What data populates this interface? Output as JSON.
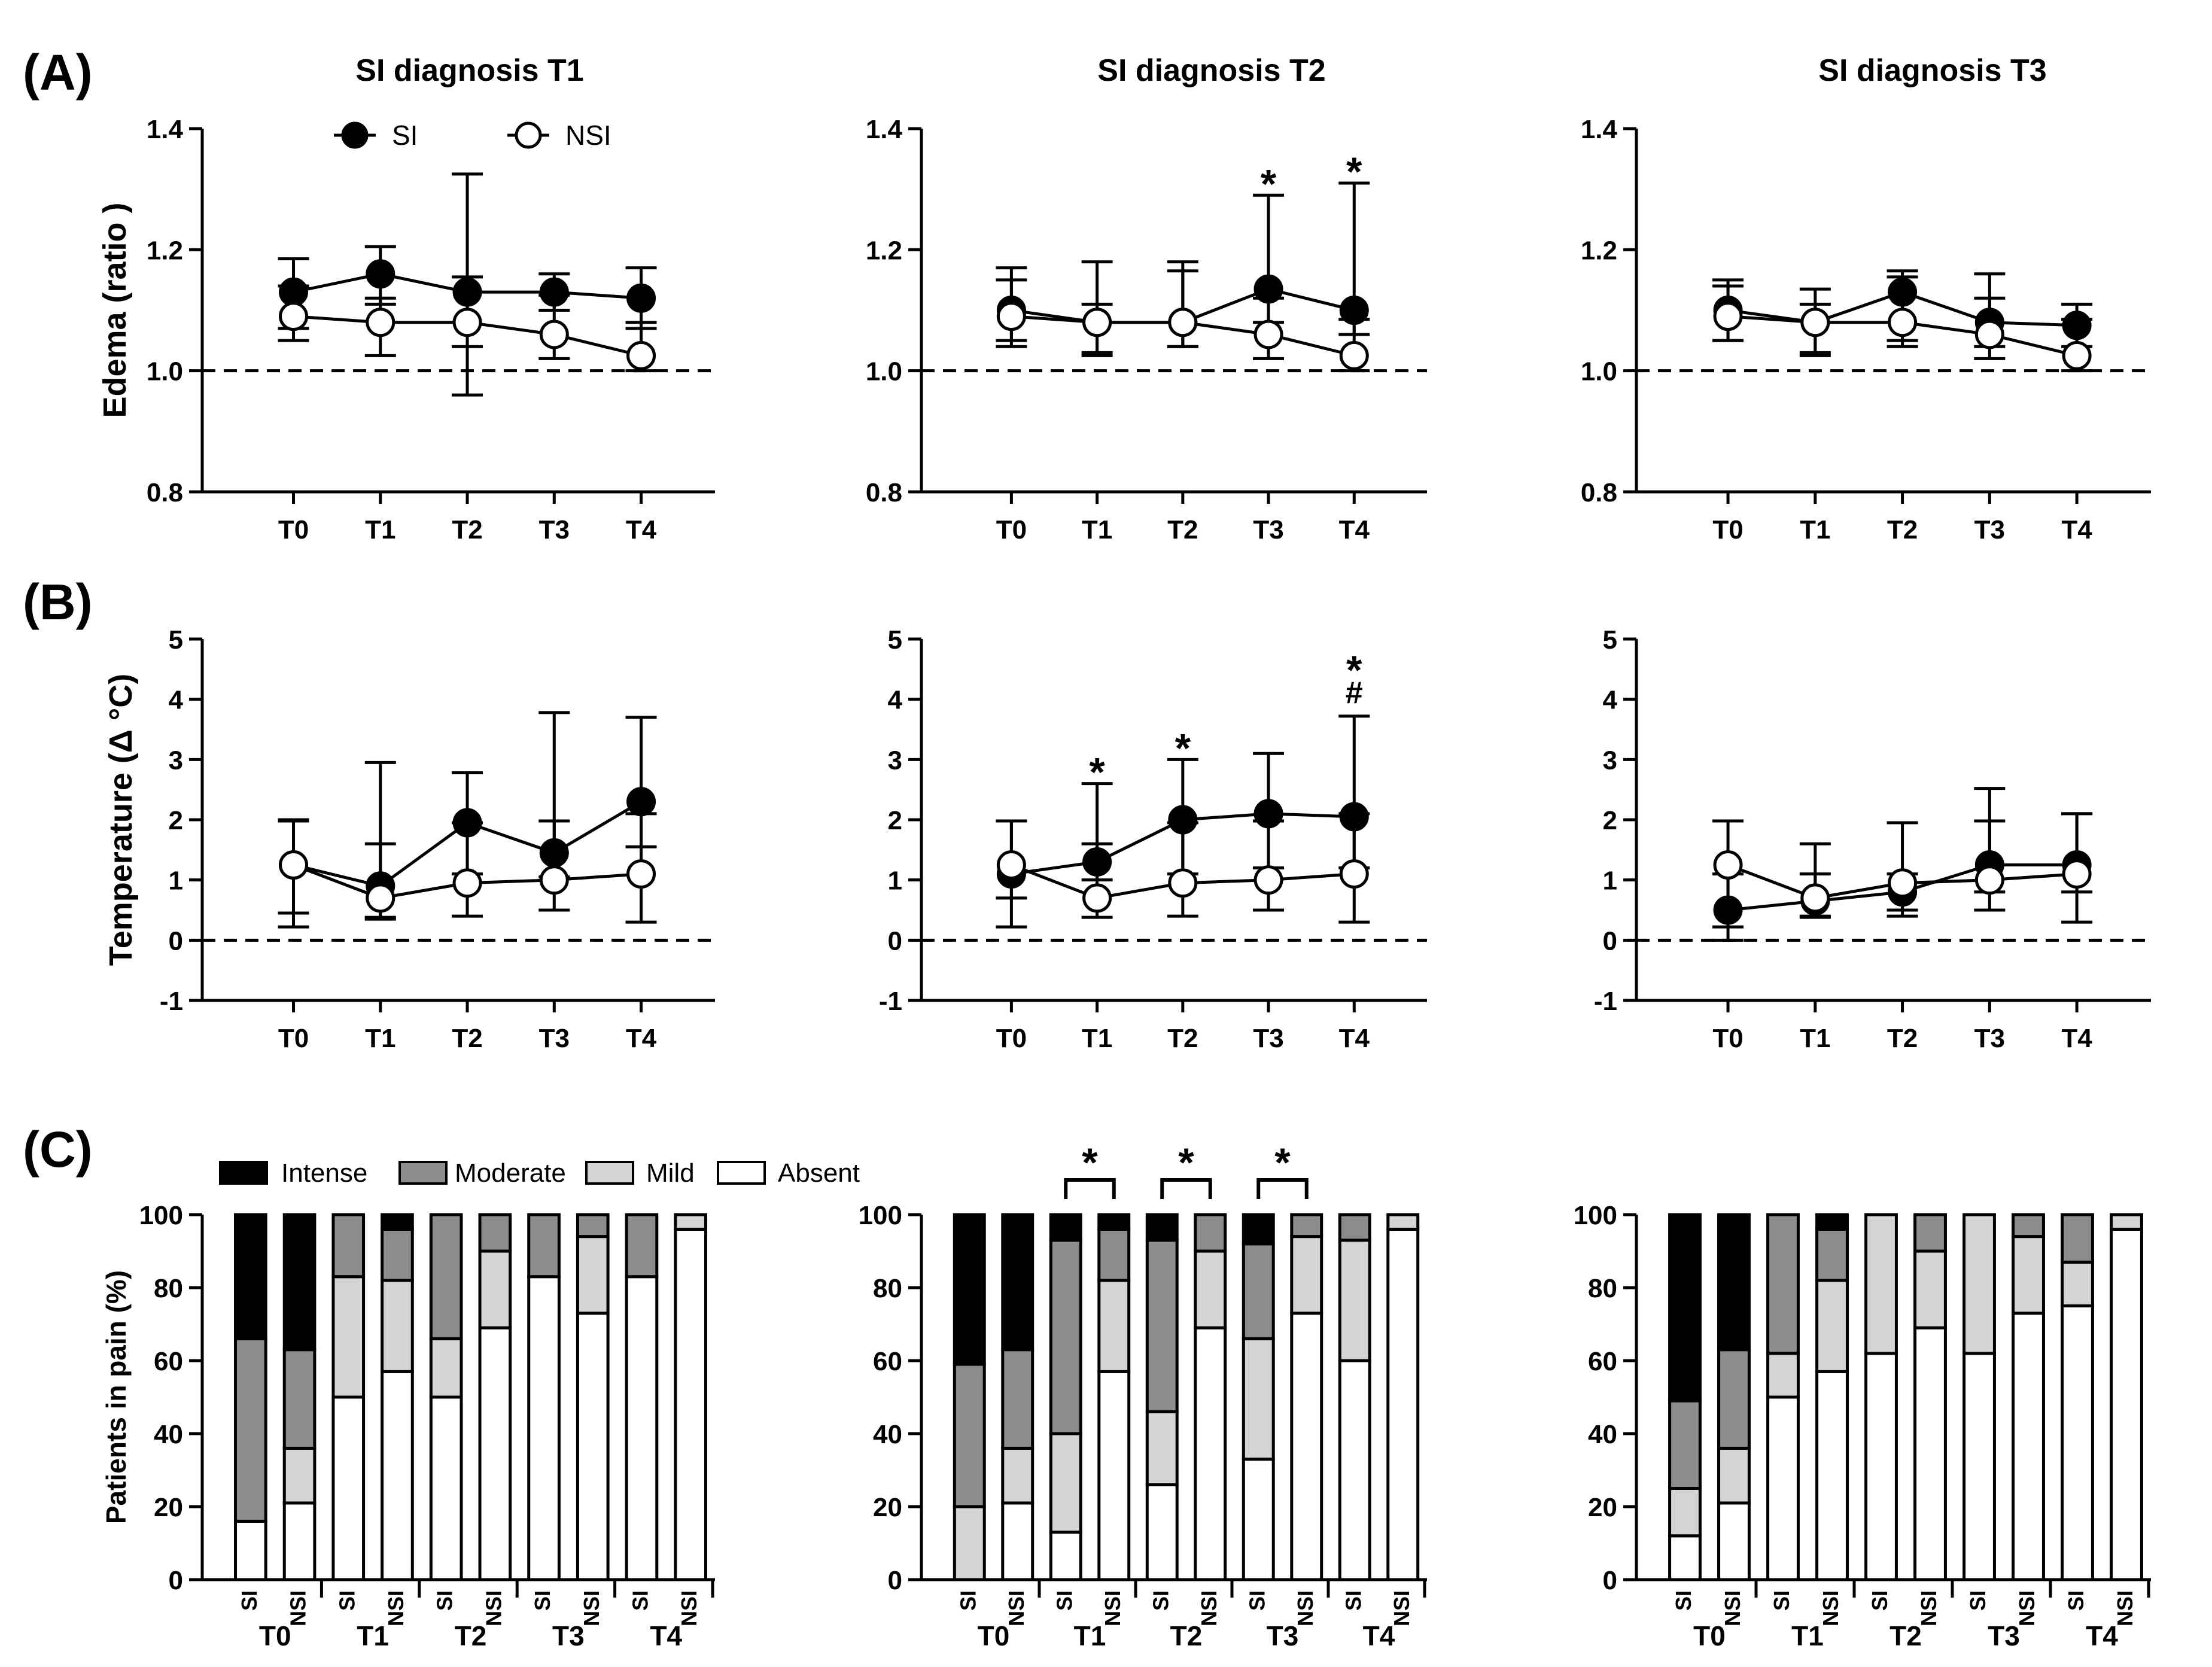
{
  "panels": {
    "A": "(A)",
    "B": "(B)",
    "C": "(C)"
  },
  "column_titles": [
    "SI diagnosis T1",
    "SI diagnosis T2",
    "SI diagnosis T3"
  ],
  "line_legend": {
    "si": "SI",
    "nsi": "NSI"
  },
  "bar_legend": [
    "Intense",
    "Moderate",
    "Mild",
    "Absent"
  ],
  "colors": {
    "intense": "#000000",
    "moderate": "#8c8c8c",
    "mild": "#d4d4d4",
    "absent": "#ffffff",
    "axis": "#000000"
  },
  "chart_data": {
    "edema": {
      "type": "line",
      "ylabel": "Edema (ratio )",
      "ylim": [
        0.8,
        1.4
      ],
      "yticks": [
        0.8,
        1.0,
        1.2,
        1.4
      ],
      "ytick_labels": [
        "0.8",
        "1.0",
        "1.2",
        "1.4"
      ],
      "reference": 1.0,
      "categories": [
        "T0",
        "T1",
        "T2",
        "T3",
        "T4"
      ],
      "charts": [
        {
          "si": [
            1.13,
            1.16,
            1.13,
            1.13,
            1.12
          ],
          "si_err_up": [
            1.185,
            1.205,
            1.325,
            1.16,
            1.17
          ],
          "si_err_lo": [
            1.07,
            1.11,
            0.96,
            1.1,
            1.07
          ],
          "nsi": [
            1.09,
            1.08,
            1.08,
            1.06,
            1.025
          ],
          "nsi_err_up": [
            1.14,
            1.12,
            1.155,
            1.125,
            1.08
          ],
          "nsi_err_lo": [
            1.05,
            1.025,
            1.04,
            1.02,
            1.0
          ],
          "annotations": [
            "",
            "",
            "",
            "",
            ""
          ]
        },
        {
          "si": [
            1.1,
            1.08,
            1.08,
            1.135,
            1.1
          ],
          "si_err_up": [
            1.17,
            1.18,
            1.18,
            1.29,
            1.31
          ],
          "si_err_lo": [
            1.05,
            1.03,
            1.04,
            1.08,
            1.06
          ],
          "nsi": [
            1.09,
            1.08,
            1.08,
            1.06,
            1.025
          ],
          "nsi_err_up": [
            1.15,
            1.11,
            1.165,
            1.12,
            1.085
          ],
          "nsi_err_lo": [
            1.04,
            1.025,
            1.04,
            1.02,
            1.0
          ],
          "annotations": [
            "",
            "",
            "",
            "*",
            "*"
          ]
        },
        {
          "si": [
            1.1,
            1.08,
            1.13,
            1.08,
            1.075
          ],
          "si_err_up": [
            1.15,
            1.135,
            1.165,
            1.16,
            1.11
          ],
          "si_err_lo": [
            1.05,
            1.03,
            1.05,
            1.04,
            1.04
          ],
          "nsi": [
            1.09,
            1.08,
            1.08,
            1.06,
            1.025
          ],
          "nsi_err_up": [
            1.14,
            1.11,
            1.155,
            1.12,
            1.085
          ],
          "nsi_err_lo": [
            1.05,
            1.025,
            1.04,
            1.02,
            1.0
          ],
          "annotations": [
            "",
            "",
            "",
            "",
            ""
          ]
        }
      ]
    },
    "temperature": {
      "type": "line",
      "ylabel": "Temperature (Δ °C)",
      "ylim": [
        -1,
        5
      ],
      "yticks": [
        -1,
        0,
        1,
        2,
        3,
        4,
        5
      ],
      "ytick_labels": [
        "-1",
        "0",
        "1",
        "2",
        "3",
        "4",
        "5"
      ],
      "reference": 0,
      "categories": [
        "T0",
        "T1",
        "T2",
        "T3",
        "T4"
      ],
      "charts": [
        {
          "si": [
            1.25,
            0.9,
            1.95,
            1.45,
            2.3
          ],
          "si_err_up": [
            2.0,
            2.95,
            2.78,
            3.78,
            3.7
          ],
          "si_err_lo": [
            0.45,
            0.35,
            1.1,
            1.05,
            1.55
          ],
          "nsi": [
            1.25,
            0.7,
            0.95,
            1.0,
            1.1
          ],
          "nsi_err_up": [
            1.98,
            1.6,
            1.95,
            1.98,
            2.1
          ],
          "nsi_err_lo": [
            0.22,
            0.38,
            0.4,
            0.5,
            0.3
          ],
          "annotations": [
            "",
            "",
            "",
            "",
            ""
          ]
        },
        {
          "si": [
            1.1,
            1.3,
            2.0,
            2.1,
            2.05
          ],
          "si_err_up": [
            1.98,
            2.6,
            3.0,
            3.1,
            3.72
          ],
          "si_err_lo": [
            0.7,
            1.0,
            1.1,
            1.2,
            1.2
          ],
          "nsi": [
            1.25,
            0.7,
            0.95,
            1.0,
            1.1
          ],
          "nsi_err_up": [
            1.98,
            1.6,
            1.95,
            1.98,
            2.1
          ],
          "nsi_err_lo": [
            0.22,
            0.38,
            0.4,
            0.5,
            0.3
          ],
          "annotations": [
            "",
            "*",
            "*",
            "",
            "*#"
          ]
        },
        {
          "si": [
            0.5,
            0.65,
            0.8,
            1.25,
            1.25
          ],
          "si_err_up": [
            1.1,
            1.1,
            1.1,
            2.52,
            2.1
          ],
          "si_err_lo": [
            0.0,
            0.4,
            0.5,
            0.8,
            0.8
          ],
          "nsi": [
            1.25,
            0.7,
            0.95,
            1.0,
            1.1
          ],
          "nsi_err_up": [
            1.98,
            1.6,
            1.95,
            1.98,
            2.1
          ],
          "nsi_err_lo": [
            0.22,
            0.38,
            0.4,
            0.5,
            0.3
          ],
          "annotations": [
            "",
            "",
            "",
            "",
            ""
          ]
        }
      ]
    },
    "pain": {
      "type": "bar",
      "stacked": true,
      "ylabel": "Patients in pain (%)",
      "ylim": [
        0,
        100
      ],
      "yticks": [
        0,
        20,
        40,
        60,
        80,
        100
      ],
      "ytick_labels": [
        "0",
        "20",
        "40",
        "60",
        "80",
        "100"
      ],
      "groups": [
        "T0",
        "T1",
        "T2",
        "T3",
        "T4"
      ],
      "bar_labels": [
        "SI",
        "NSI"
      ],
      "charts": [
        {
          "absent": [
            16,
            21,
            50,
            57,
            50,
            69,
            83,
            73,
            83,
            96
          ],
          "mild": [
            0,
            15,
            33,
            25,
            16,
            21,
            0,
            21,
            0,
            4
          ],
          "moderate": [
            50,
            27,
            17,
            14,
            34,
            10,
            17,
            6,
            17,
            0
          ],
          "intense": [
            34,
            37,
            0,
            4,
            0,
            0,
            0,
            0,
            0,
            0
          ],
          "brackets": [
            "",
            "",
            "",
            "",
            ""
          ]
        },
        {
          "absent": [
            0,
            21,
            13,
            57,
            26,
            69,
            33,
            73,
            60,
            96
          ],
          "mild": [
            20,
            15,
            27,
            25,
            20,
            21,
            33,
            21,
            33,
            4
          ],
          "moderate": [
            39,
            27,
            53,
            14,
            47,
            10,
            26,
            6,
            7,
            0
          ],
          "intense": [
            41,
            37,
            7,
            4,
            7,
            0,
            8,
            0,
            0,
            0
          ],
          "brackets": [
            "",
            "*",
            "*",
            "*",
            ""
          ]
        },
        {
          "absent": [
            12,
            21,
            50,
            57,
            62,
            69,
            62,
            73,
            75,
            96
          ],
          "mild": [
            13,
            15,
            12,
            25,
            38,
            21,
            38,
            21,
            12,
            4
          ],
          "moderate": [
            24,
            27,
            38,
            14,
            0,
            10,
            0,
            6,
            13,
            0
          ],
          "intense": [
            51,
            37,
            0,
            4,
            0,
            0,
            0,
            0,
            0,
            0
          ],
          "brackets": [
            "",
            "",
            "",
            "",
            ""
          ]
        }
      ]
    }
  }
}
